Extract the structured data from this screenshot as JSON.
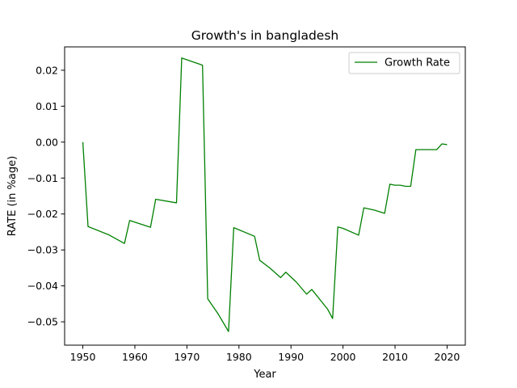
{
  "chart_data": {
    "type": "line",
    "title": "Growth's in bangladesh",
    "xlabel": "Year",
    "ylabel": "RATE (in %age)",
    "xlim": [
      1946.5,
      2023.5
    ],
    "ylim": [
      -0.0565,
      0.0265
    ],
    "xticks": [
      1950,
      1960,
      1970,
      1980,
      1990,
      2000,
      2010,
      2020
    ],
    "xtick_labels": [
      "1950",
      "1960",
      "1970",
      "1980",
      "1990",
      "2000",
      "2010",
      "2020"
    ],
    "yticks": [
      0.02,
      0.01,
      0.0,
      -0.01,
      -0.02,
      -0.03,
      -0.04,
      -0.05
    ],
    "ytick_labels": [
      "0.02",
      "0.01",
      "0.00",
      "−0.01",
      "−0.02",
      "−0.03",
      "−0.04",
      "−0.05"
    ],
    "grid": false,
    "legend": {
      "position": "top-right"
    },
    "series": [
      {
        "name": "Growth Rate",
        "color": "#008000",
        "x": [
          1950,
          1951,
          1955,
          1958,
          1959,
          1963,
          1964,
          1968,
          1969,
          1973,
          1974,
          1976,
          1978,
          1979,
          1983,
          1984,
          1986,
          1988,
          1989,
          1991,
          1993,
          1994,
          1997,
          1998,
          1999,
          2000,
          2003,
          2004,
          2006,
          2008,
          2009,
          2010,
          2011,
          2012,
          2013,
          2014,
          2018,
          2019,
          2020
        ],
        "y": [
          0.0,
          -0.0235,
          -0.0258,
          -0.0282,
          -0.0218,
          -0.0237,
          -0.0159,
          -0.0169,
          0.0234,
          0.0214,
          -0.0436,
          -0.0478,
          -0.0527,
          -0.0238,
          -0.0262,
          -0.0329,
          -0.0351,
          -0.0377,
          -0.0362,
          -0.0389,
          -0.0423,
          -0.041,
          -0.0464,
          -0.0491,
          -0.0236,
          -0.024,
          -0.0259,
          -0.0183,
          -0.0189,
          -0.0198,
          -0.0117,
          -0.012,
          -0.012,
          -0.0123,
          -0.0123,
          -0.0021,
          -0.0021,
          -0.0005,
          -0.0007
        ]
      }
    ]
  }
}
